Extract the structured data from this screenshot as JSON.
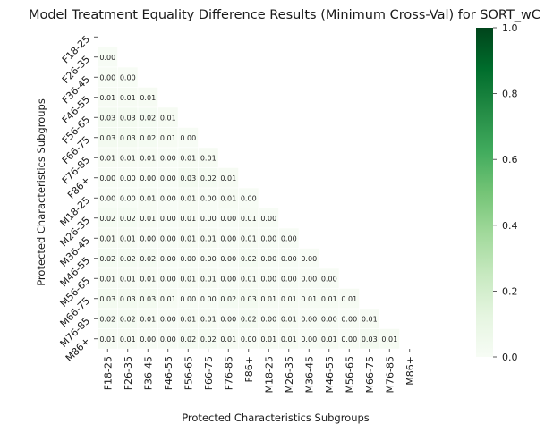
{
  "chart_data": {
    "type": "heatmap",
    "title": "Model Treatment Equality Difference Results (Minimum Cross-Val) for SORT_wC",
    "xlabel": "Protected Characteristics Subgroups",
    "ylabel": "Protected Characteristics Subgroups",
    "categories": [
      "F18-25",
      "F26-35",
      "F36-45",
      "F46-55",
      "F56-65",
      "F66-75",
      "F76-85",
      "F86+",
      "M18-25",
      "M26-35",
      "M36-45",
      "M46-55",
      "M56-65",
      "M66-75",
      "M76-85",
      "M86+"
    ],
    "mask": "upper-triangle",
    "values": [
      [],
      [
        "0.00"
      ],
      [
        "0.00",
        "0.00"
      ],
      [
        "0.01",
        "0.01",
        "0.01"
      ],
      [
        "0.03",
        "0.03",
        "0.02",
        "0.01"
      ],
      [
        "0.03",
        "0.03",
        "0.02",
        "0.01",
        "0.00"
      ],
      [
        "0.01",
        "0.01",
        "0.01",
        "0.00",
        "0.01",
        "0.01"
      ],
      [
        "0.00",
        "0.00",
        "0.00",
        "0.00",
        "0.03",
        "0.02",
        "0.01"
      ],
      [
        "0.00",
        "0.00",
        "0.01",
        "0.00",
        "0.01",
        "0.00",
        "0.01",
        "0.00"
      ],
      [
        "0.02",
        "0.02",
        "0.01",
        "0.00",
        "0.01",
        "0.00",
        "0.00",
        "0.01",
        "0.00"
      ],
      [
        "0.01",
        "0.01",
        "0.00",
        "0.00",
        "0.01",
        "0.01",
        "0.00",
        "0.01",
        "0.00",
        "0.00"
      ],
      [
        "0.02",
        "0.02",
        "0.02",
        "0.00",
        "0.00",
        "0.00",
        "0.00",
        "0.02",
        "0.00",
        "0.00",
        "0.00"
      ],
      [
        "0.01",
        "0.01",
        "0.01",
        "0.00",
        "0.01",
        "0.01",
        "0.00",
        "0.01",
        "0.00",
        "0.00",
        "0.00",
        "0.00"
      ],
      [
        "0.03",
        "0.03",
        "0.03",
        "0.01",
        "0.00",
        "0.00",
        "0.02",
        "0.03",
        "0.01",
        "0.01",
        "0.01",
        "0.01",
        "0.01"
      ],
      [
        "0.02",
        "0.02",
        "0.01",
        "0.00",
        "0.01",
        "0.01",
        "0.00",
        "0.02",
        "0.00",
        "0.01",
        "0.00",
        "0.00",
        "0.00",
        "0.01"
      ],
      [
        "0.01",
        "0.01",
        "0.00",
        "0.00",
        "0.02",
        "0.02",
        "0.01",
        "0.00",
        "0.01",
        "0.01",
        "0.00",
        "0.01",
        "0.00",
        "0.03",
        "0.01"
      ]
    ],
    "colorbar": {
      "range": [
        0,
        1
      ],
      "ticks": [
        "0.0",
        "0.2",
        "0.4",
        "0.6",
        "0.8",
        "1.0"
      ],
      "colormap": "Greens",
      "color_low": "#f7fcf5",
      "color_high": "#00441b"
    },
    "grid": false,
    "legend": "colorbar-right"
  }
}
